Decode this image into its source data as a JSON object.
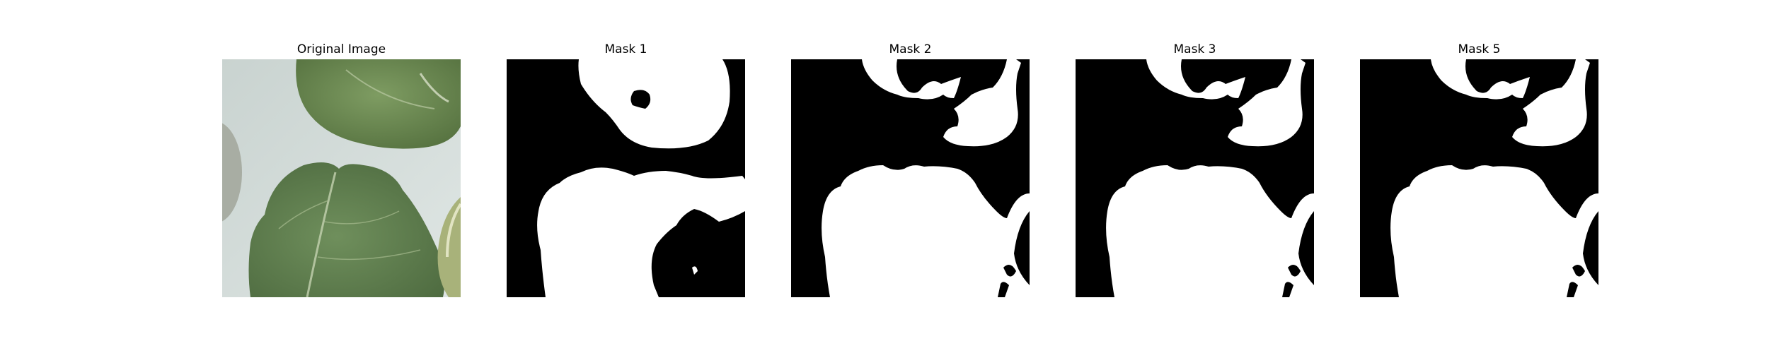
{
  "figure": {
    "panels": [
      {
        "title": "Original Image"
      },
      {
        "title": "Mask 1"
      },
      {
        "title": "Mask 2"
      },
      {
        "title": "Mask 3"
      },
      {
        "title": "Mask 5"
      }
    ]
  },
  "colors": {
    "background": "#ffffff",
    "mask_background": "#000000",
    "mask_foreground": "#ffffff",
    "surface": "#cdd8d6",
    "leaf_dark": "#5b7a4c",
    "leaf_light": "#84a26a",
    "bowl": "#a9aea4"
  }
}
